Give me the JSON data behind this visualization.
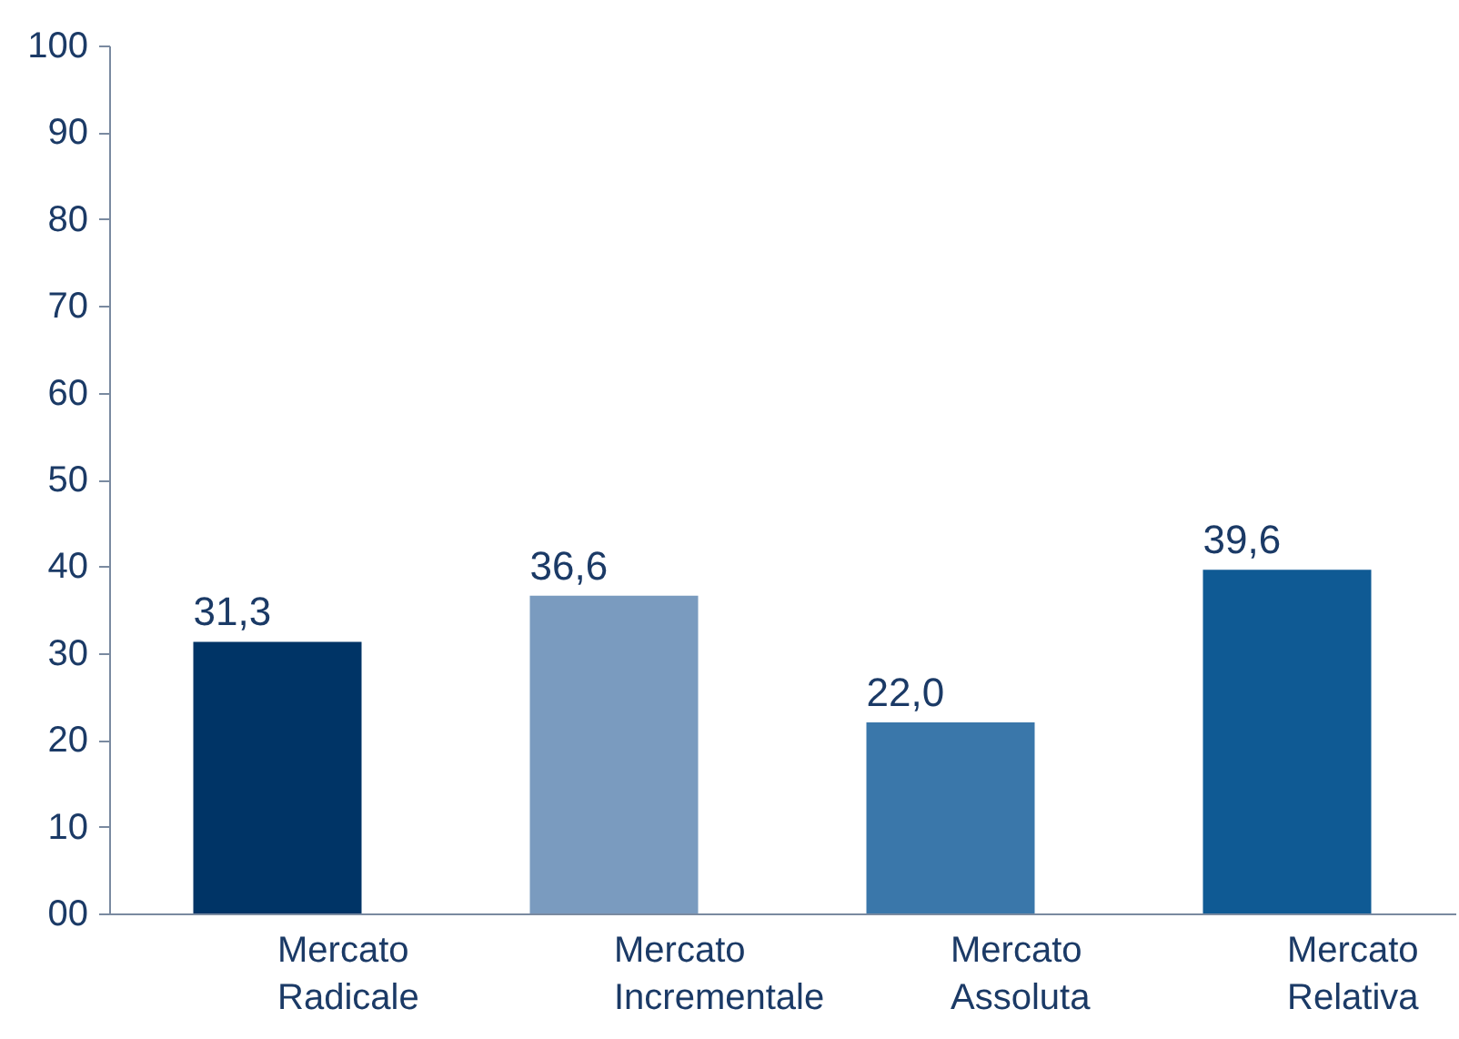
{
  "chart_data": {
    "type": "bar",
    "categories": [
      "Mercato Radicale",
      "Mercato Incrementale",
      "Mercato Assoluta",
      "Mercato Relativa"
    ],
    "values": [
      31.3,
      36.6,
      22.0,
      39.6
    ],
    "colors": [
      "#003466",
      "#7a9bbf",
      "#3a77aa",
      "#0f5a94"
    ],
    "value_labels": [
      "31,3",
      "36,6",
      "22,0",
      "39,6"
    ],
    "ylim": [
      0,
      100
    ],
    "yticks": [
      {
        "value": 0,
        "label": "00"
      },
      10,
      20,
      30,
      40,
      50,
      60,
      70,
      80,
      90,
      100
    ],
    "grid": false
  }
}
